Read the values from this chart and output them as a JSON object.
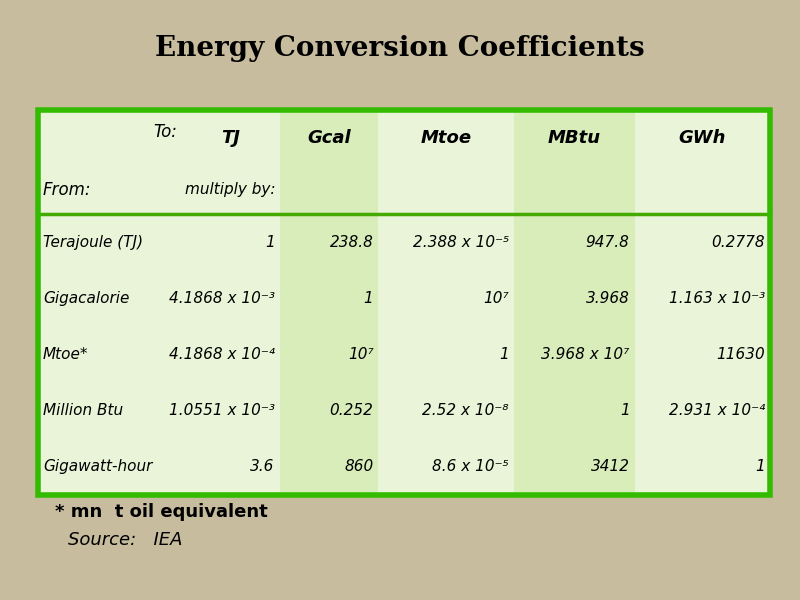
{
  "title": "Energy Conversion Coefficients",
  "background_color": "#c8bc9e",
  "col_light": "#eaf4d8",
  "col_dark": "#d8edba",
  "table_border_color": "#33bb00",
  "sep_line_color": "#44aa00",
  "col_headers": [
    "TJ",
    "Gcal",
    "Mtoe",
    "MBtu",
    "GWh"
  ],
  "rows": [
    {
      "label": "Terajoule (TJ)",
      "values": [
        "1",
        "238.8",
        "2.388 x 10⁻⁵",
        "947.8",
        "0.2778"
      ]
    },
    {
      "label": "Gigacalorie",
      "values": [
        "4.1868 x 10⁻³",
        "1",
        "10⁷",
        "3.968",
        "1.163 x 10⁻³"
      ]
    },
    {
      "label": "Mtoe*",
      "values": [
        "4.1868 x 10⁻⁴",
        "10⁷",
        "1",
        "3.968 x 10⁷",
        "11630"
      ]
    },
    {
      "label": "Million Btu",
      "values": [
        "1.0551 x 10⁻³",
        "0.252",
        "2.52 x 10⁻⁸",
        "1",
        "2.931 x 10⁻⁴"
      ]
    },
    {
      "label": "Gigawatt-hour",
      "values": [
        "3.6",
        "860",
        "8.6 x 10⁻⁵",
        "3412",
        "1"
      ]
    }
  ],
  "footnote": "* mn  t oil equivalent",
  "source": "Source:   IEA",
  "title_fontsize": 20,
  "header_fontsize": 12,
  "cell_fontsize": 11,
  "footnote_fontsize": 13,
  "source_fontsize": 13
}
